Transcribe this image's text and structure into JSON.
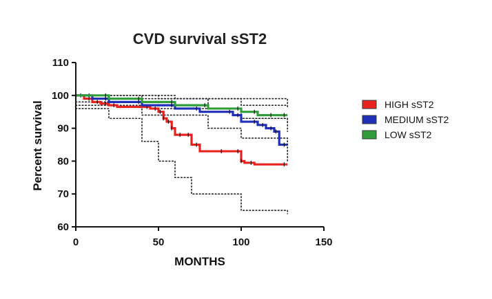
{
  "chart_data": {
    "type": "line",
    "title": "CVD survival sST2",
    "xlabel": "MONTHS",
    "ylabel": "Percent survival",
    "xlim": [
      0,
      150
    ],
    "ylim": [
      60,
      110
    ],
    "xticks": [
      "0",
      "50",
      "100",
      "150"
    ],
    "yticks": [
      "60",
      "70",
      "80",
      "90",
      "100",
      "110"
    ],
    "grid": false,
    "legend_position": "right",
    "series": [
      {
        "name": "HIGH sST2",
        "color": "#e8231e",
        "step": true,
        "x": [
          0,
          5,
          10,
          15,
          20,
          25,
          45,
          50,
          53,
          55,
          58,
          60,
          65,
          70,
          75,
          90,
          100,
          102,
          108,
          128
        ],
        "values": [
          100,
          99,
          98,
          97.5,
          97,
          96.5,
          96,
          95,
          93,
          92,
          90,
          88,
          88,
          85,
          83,
          83,
          80,
          79.5,
          79,
          79
        ]
      },
      {
        "name": "MEDIUM sST2",
        "color": "#1f2fb8",
        "step": true,
        "x": [
          0,
          10,
          20,
          40,
          60,
          75,
          95,
          100,
          110,
          115,
          120,
          123,
          128
        ],
        "values": [
          100,
          99,
          98,
          97,
          96,
          95,
          94,
          92,
          91,
          90,
          89,
          85,
          85
        ]
      },
      {
        "name": "LOW sST2",
        "color": "#2f9e3a",
        "step": true,
        "x": [
          0,
          20,
          40,
          60,
          80,
          100,
          110,
          120,
          128
        ],
        "values": [
          100,
          99,
          98,
          97,
          96,
          95,
          94,
          94,
          94
        ]
      }
    ],
    "confidence_bands": [
      {
        "series": "HIGH sST2",
        "upper": [
          [
            0,
            100
          ],
          [
            40,
            99
          ],
          [
            80,
            96
          ],
          [
            100,
            93
          ],
          [
            128,
            92
          ]
        ],
        "lower": [
          [
            0,
            96
          ],
          [
            20,
            93
          ],
          [
            40,
            86
          ],
          [
            50,
            80
          ],
          [
            60,
            75
          ],
          [
            70,
            70
          ],
          [
            100,
            65
          ],
          [
            128,
            64
          ]
        ]
      },
      {
        "series": "MEDIUM sST2",
        "upper": [
          [
            0,
            100
          ],
          [
            50,
            99
          ],
          [
            100,
            97
          ],
          [
            128,
            96
          ]
        ],
        "lower": [
          [
            0,
            97
          ],
          [
            40,
            94
          ],
          [
            80,
            90
          ],
          [
            100,
            87
          ],
          [
            128,
            80
          ]
        ]
      },
      {
        "series": "LOW sST2",
        "upper": [
          [
            0,
            100
          ],
          [
            60,
            99
          ],
          [
            128,
            97
          ]
        ],
        "lower": [
          [
            0,
            98
          ],
          [
            50,
            96
          ],
          [
            100,
            93
          ],
          [
            128,
            89
          ]
        ]
      }
    ]
  }
}
